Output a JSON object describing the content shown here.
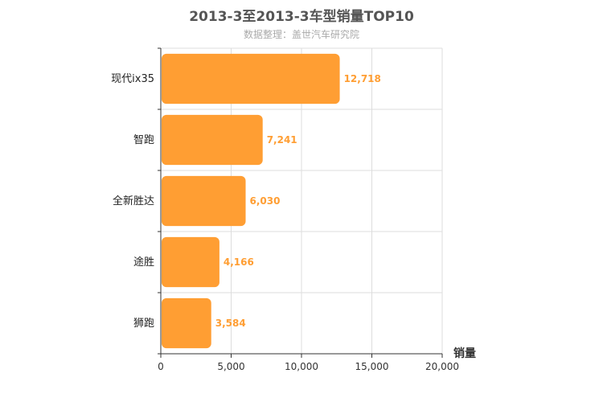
{
  "chart_data": {
    "type": "bar",
    "orientation": "horizontal",
    "title": "2013-3至2013-3车型销量TOP10",
    "subtitle": "数据整理：盖世汽车研究院",
    "xlabel": "销量",
    "ylabel": "",
    "categories": [
      "现代ix35",
      "智跑",
      "全新胜达",
      "途胜",
      "狮跑"
    ],
    "values": [
      12718,
      7241,
      6030,
      4166,
      3584
    ],
    "value_labels": [
      "12,718",
      "7,241",
      "6,030",
      "4,166",
      "3,584"
    ],
    "xlim": [
      0,
      20000
    ],
    "xticks": [
      0,
      5000,
      10000,
      15000,
      20000
    ],
    "xtick_labels": [
      "0",
      "5,000",
      "10,000",
      "15,000",
      "20,000"
    ],
    "grid": true,
    "bar_color": "#ff9e33"
  }
}
